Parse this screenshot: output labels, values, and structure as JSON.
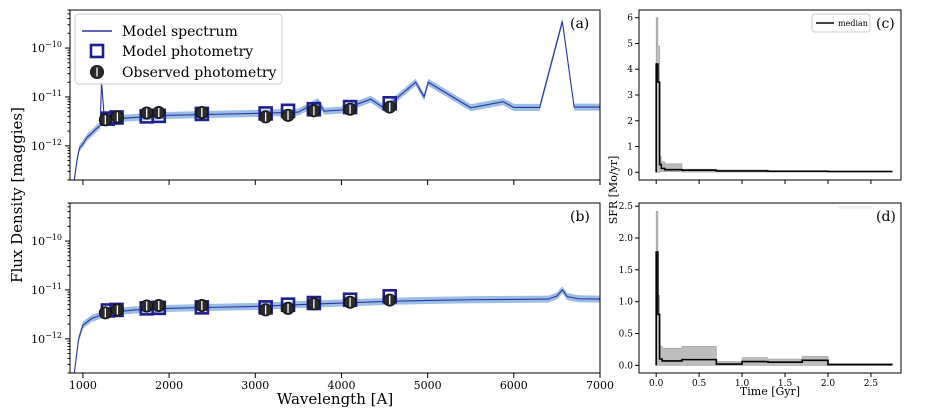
{
  "colors": {
    "model_spectrum": "#2d35a0",
    "model_spectrum_band": "#6fa3d8",
    "model_photometry": "#1f1f8f",
    "observed_photometry": "#2b2b2b",
    "sfr_band": "#bdbdbd",
    "sfr_median": "#000000"
  },
  "chart_data": [
    {
      "panel": "a",
      "type": "line",
      "panel_label": "(a)",
      "xlabel": "",
      "ylabel": "Flux Density [maggies]",
      "x_scale": "linear",
      "y_scale": "log",
      "xlim": [
        850,
        7000
      ],
      "ylim": [
        2e-13,
        6e-10
      ],
      "y_ticks": [
        {
          "value": 1e-12,
          "label": "10^-12"
        },
        {
          "value": 1e-11,
          "label": "10^-11"
        },
        {
          "value": 1e-10,
          "label": "10^-10"
        }
      ],
      "legend": {
        "placement": "top-left",
        "entries": [
          "Model spectrum",
          "Model photometry",
          "Observed photometry"
        ]
      },
      "spectrum": {
        "name": "Model spectrum",
        "x": [
          900,
          930,
          960,
          1000,
          1050,
          1100,
          1150,
          1200,
          1216,
          1250,
          1300,
          1400,
          1500,
          1700,
          2000,
          2500,
          3000,
          3500,
          3727,
          3800,
          4000,
          4340,
          4500,
          4861,
          4959,
          5007,
          5500,
          5876,
          6000,
          6300,
          6563,
          6700,
          7000
        ],
        "y": [
          2e-13,
          5e-13,
          9e-13,
          1.1e-12,
          1.5e-12,
          1.8e-12,
          2.2e-12,
          2.6e-12,
          2.1e-11,
          3.2e-12,
          3.3e-12,
          3.5e-12,
          3.7e-12,
          3.9e-12,
          4.2e-12,
          4.4e-12,
          4.6e-12,
          4.9e-12,
          8e-12,
          5.1e-12,
          5.4e-12,
          9e-12,
          5.8e-12,
          2e-11,
          1e-11,
          2e-11,
          6e-12,
          8e-12,
          6.1e-12,
          6.1e-12,
          3.5e-10,
          6.2e-12,
          6.2e-12
        ]
      },
      "model_photometry": {
        "name": "Model photometry",
        "x": [
          1290,
          1390,
          1740,
          1880,
          2380,
          3120,
          3380,
          3680,
          4100,
          4560
        ],
        "y": [
          3.6e-12,
          3.8e-12,
          4e-12,
          4.1e-12,
          4.5e-12,
          4.6e-12,
          5.2e-12,
          5.6e-12,
          6.2e-12,
          7.4e-12
        ]
      },
      "observed_photometry": {
        "name": "Observed photometry",
        "x": [
          1260,
          1400,
          1740,
          1880,
          2380,
          3120,
          3380,
          3680,
          4100,
          4560
        ],
        "y": [
          3.4e-12,
          3.9e-12,
          4.7e-12,
          4.8e-12,
          4.8e-12,
          3.9e-12,
          4.2e-12,
          5.2e-12,
          5.6e-12,
          6.2e-12
        ]
      }
    },
    {
      "panel": "b",
      "type": "line",
      "panel_label": "(b)",
      "xlabel": "Wavelength [A]",
      "ylabel": "Flux Density [maggies]",
      "x_scale": "linear",
      "y_scale": "log",
      "xlim": [
        850,
        7000
      ],
      "ylim": [
        2e-13,
        6e-10
      ],
      "x_ticks": [
        1000,
        2000,
        3000,
        4000,
        5000,
        6000,
        7000
      ],
      "y_ticks": [
        {
          "value": 1e-12,
          "label": "10^-12"
        },
        {
          "value": 1e-11,
          "label": "10^-11"
        },
        {
          "value": 1e-10,
          "label": "10^-10"
        }
      ],
      "spectrum": {
        "name": "Model spectrum",
        "x": [
          900,
          950,
          1000,
          1100,
          1200,
          1300,
          1400,
          1600,
          2000,
          2500,
          3000,
          3500,
          4000,
          4500,
          5000,
          5500,
          6000,
          6400,
          6500,
          6563,
          6620,
          6750,
          7000
        ],
        "y": [
          2e-13,
          1e-12,
          1.9e-12,
          2.6e-12,
          3e-12,
          3.3e-12,
          3.6e-12,
          3.9e-12,
          4.2e-12,
          4.4e-12,
          4.6e-12,
          5e-12,
          5.4e-12,
          5.8e-12,
          6.1e-12,
          6.3e-12,
          6.4e-12,
          6.5e-12,
          7.5e-12,
          1e-11,
          7.3e-12,
          6.6e-12,
          6.5e-12
        ]
      },
      "model_photometry": {
        "name": "Model photometry",
        "x": [
          1290,
          1390,
          1740,
          1880,
          2380,
          3120,
          3380,
          3680,
          4100,
          4560
        ],
        "y": [
          3.8e-12,
          3.9e-12,
          4.2e-12,
          4.3e-12,
          4.4e-12,
          4.4e-12,
          5e-12,
          5.4e-12,
          6.3e-12,
          7.4e-12
        ]
      },
      "observed_photometry": {
        "name": "Observed photometry",
        "x": [
          1260,
          1400,
          1740,
          1880,
          2380,
          3120,
          3380,
          3680,
          4100,
          4560
        ],
        "y": [
          3.4e-12,
          3.9e-12,
          4.7e-12,
          4.8e-12,
          4.8e-12,
          3.9e-12,
          4.2e-12,
          5.2e-12,
          5.6e-12,
          6.2e-12
        ]
      }
    },
    {
      "panel": "c",
      "type": "area",
      "panel_label": "(c)",
      "xlabel": "",
      "ylabel": "SFR [Mo/yr]",
      "xlim": [
        -0.2,
        2.85
      ],
      "ylim": [
        -0.3,
        6.3
      ],
      "x_ticks": [
        0.0,
        0.5,
        1.0,
        1.5,
        2.0,
        2.5
      ],
      "y_ticks": [
        0,
        1,
        2,
        3,
        4,
        5,
        6
      ],
      "legend": {
        "placement": "top-right",
        "entries": [
          "median"
        ]
      },
      "bin_edges": [
        0.0,
        0.02,
        0.04,
        0.06,
        0.1,
        0.3,
        0.7,
        1.3,
        2.0,
        2.75
      ],
      "median": [
        4.2,
        3.5,
        0.3,
        0.15,
        0.1,
        0.08,
        0.05,
        0.04,
        0.03
      ],
      "lower": [
        0.0,
        0.0,
        0.02,
        0.02,
        0.02,
        0.01,
        0.01,
        0.01,
        0.01
      ],
      "upper": [
        6.0,
        4.9,
        0.6,
        0.4,
        0.33,
        0.12,
        0.09,
        0.06,
        0.05
      ]
    },
    {
      "panel": "d",
      "type": "area",
      "panel_label": "(d)",
      "xlabel": "Time [Gyr]",
      "ylabel": "SFR [Mo/yr]",
      "xlim": [
        -0.2,
        2.85
      ],
      "ylim": [
        -0.12,
        2.55
      ],
      "x_ticks": [
        0.0,
        0.5,
        1.0,
        1.5,
        2.0,
        2.5
      ],
      "y_ticks": [
        0.0,
        0.5,
        1.0,
        1.5,
        2.0,
        2.5
      ],
      "bin_edges": [
        0.0,
        0.02,
        0.04,
        0.07,
        0.3,
        0.7,
        1.0,
        1.3,
        1.7,
        2.0,
        2.75
      ],
      "median": [
        1.78,
        0.8,
        0.1,
        0.07,
        0.09,
        0.02,
        0.06,
        0.05,
        0.08,
        0.01
      ],
      "lower": [
        0.0,
        0.0,
        0.0,
        0.0,
        0.0,
        0.0,
        0.0,
        0.0,
        0.0,
        0.0
      ],
      "upper": [
        2.42,
        1.1,
        0.3,
        0.27,
        0.3,
        0.06,
        0.12,
        0.1,
        0.14,
        0.03
      ]
    }
  ]
}
